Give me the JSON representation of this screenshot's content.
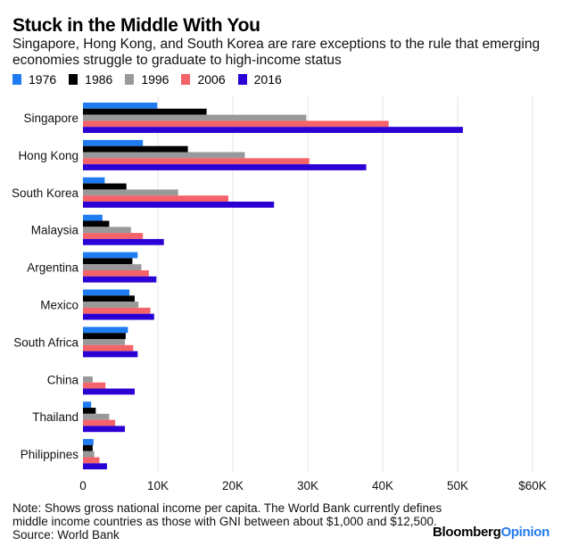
{
  "header": {
    "title": "Stuck in the Middle With You",
    "subtitle": "Singapore, Hong Kong, and South Korea are rare exceptions to the rule that emerging economies struggle to graduate to high-income status"
  },
  "footer": {
    "note_line1": "Note: Shows gross national income per capita. The World Bank currently defines",
    "note_line2": "middle income countries as those with GNI between about $1,000 and $12,500.",
    "source": "Source: World Bank",
    "brand_part1": "Bloomberg",
    "brand_part2": "Opinion"
  },
  "chart_data": {
    "type": "bar",
    "orientation": "horizontal",
    "title": "Stuck in the Middle With You",
    "subtitle": "Singapore, Hong Kong, and South Korea are rare exceptions to the rule that emerging economies struggle to graduate to high-income status",
    "xlabel": "",
    "ylabel": "",
    "xlim": [
      0,
      60000
    ],
    "xticks": [
      0,
      10000,
      20000,
      30000,
      40000,
      50000,
      60000
    ],
    "xtick_labels": [
      "0",
      "10K",
      "20K",
      "30K",
      "40K",
      "50K",
      "$60K"
    ],
    "grid": true,
    "legend_position": "top-left",
    "categories": [
      "Singapore",
      "Hong Kong",
      "South Korea",
      "Malaysia",
      "Argentina",
      "Mexico",
      "South Africa",
      "China",
      "Thailand",
      "Philippines"
    ],
    "series": [
      {
        "name": "1976",
        "color": "#1f7bf0",
        "values": [
          9900,
          8000,
          2900,
          2600,
          7300,
          6200,
          6000,
          null,
          1100,
          1400
        ]
      },
      {
        "name": "1986",
        "color": "#000000",
        "values": [
          16500,
          14000,
          5800,
          3500,
          6600,
          6900,
          5700,
          null,
          1700,
          1300
        ]
      },
      {
        "name": "1996",
        "color": "#999999",
        "values": [
          29800,
          21600,
          12700,
          6400,
          7800,
          7400,
          5600,
          1300,
          3500,
          1500
        ]
      },
      {
        "name": "2006",
        "color": "#f4636a",
        "values": [
          40800,
          30200,
          19400,
          8000,
          8800,
          9000,
          6700,
          3000,
          4300,
          2200
        ]
      },
      {
        "name": "2016",
        "color": "#2a00d4",
        "values": [
          50700,
          37800,
          25500,
          10800,
          9800,
          9500,
          7300,
          6900,
          5600,
          3200
        ]
      }
    ]
  }
}
